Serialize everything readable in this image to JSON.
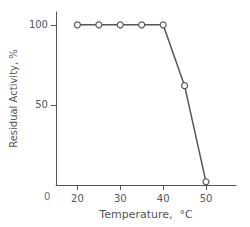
{
  "chart_data": {
    "type": "line",
    "x": [
      20,
      25,
      30,
      35,
      40,
      45,
      50
    ],
    "values": [
      100,
      100,
      100,
      100,
      100,
      62,
      2
    ],
    "xlabel": "Temperature,  °C",
    "ylabel": "Residual Activity, %",
    "xlim": [
      15,
      57
    ],
    "ylim": [
      0,
      108
    ],
    "xticks": [
      20,
      30,
      40,
      50
    ],
    "yticks": [
      50,
      100
    ],
    "color": "#555555",
    "marker": "circle",
    "annotations": [
      {
        "text": "0",
        "x": 15,
        "y": 0
      }
    ]
  }
}
